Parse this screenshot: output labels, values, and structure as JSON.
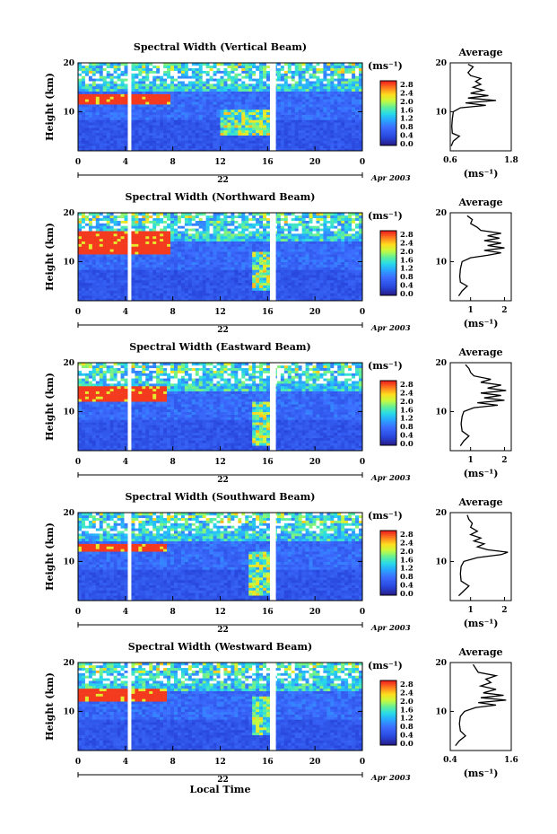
{
  "chart_data": [
    {
      "type": "heatmap",
      "title": "Spectral Width (Vertical Beam)",
      "ylabel": "Height (km)",
      "y_ticks": [
        "20",
        "10"
      ],
      "x_ticks": [
        "0",
        "4",
        "8",
        "12",
        "16",
        "20",
        "0"
      ],
      "date_label": "22",
      "month_label": "Apr 2003",
      "xlim": [
        0,
        24
      ],
      "ylim": [
        2,
        20
      ],
      "unit_label": "(ms⁻¹)",
      "colorbar_ticks": [
        "2.8",
        "2.4",
        "2.0",
        "1.6",
        "1.2",
        "0.8",
        "0.4",
        "0.0"
      ],
      "data_gaps": [
        [
          4.2,
          4.5
        ],
        [
          16.2,
          16.7
        ]
      ],
      "features": [
        {
          "kind": "high",
          "t": [
            0,
            7.7
          ],
          "h": [
            11.5,
            13.5
          ]
        },
        {
          "kind": "patch",
          "t": [
            12.0,
            16.0
          ],
          "h": [
            5,
            10
          ]
        }
      ],
      "profile": {
        "title": "Average",
        "xlabel": "(ms⁻¹)",
        "x_ticks": [
          "0.6",
          "1.8"
        ],
        "xlim": [
          0.6,
          1.8
        ],
        "y_ticks": [
          "20",
          "10"
        ],
        "points": [
          [
            0.62,
            3
          ],
          [
            0.66,
            4
          ],
          [
            0.78,
            5
          ],
          [
            0.64,
            5.6
          ],
          [
            0.63,
            7
          ],
          [
            0.64,
            8.5
          ],
          [
            0.66,
            10
          ],
          [
            0.8,
            10.8
          ],
          [
            1.3,
            11.3
          ],
          [
            0.9,
            11.8
          ],
          [
            1.5,
            12.3
          ],
          [
            0.95,
            12.8
          ],
          [
            1.35,
            13.3
          ],
          [
            1.0,
            13.8
          ],
          [
            1.25,
            14.4
          ],
          [
            1.05,
            15.0
          ],
          [
            1.2,
            15.6
          ],
          [
            1.1,
            16.2
          ],
          [
            1.2,
            16.8
          ],
          [
            1.0,
            17.4
          ],
          [
            0.95,
            18.0
          ],
          [
            1.0,
            18.6
          ],
          [
            1.05,
            19.2
          ],
          [
            0.95,
            19.7
          ]
        ]
      }
    },
    {
      "type": "heatmap",
      "title": "Spectral Width (Northward Beam)",
      "ylabel": "Height (km)",
      "y_ticks": [
        "20",
        "10"
      ],
      "x_ticks": [
        "0",
        "4",
        "8",
        "12",
        "16",
        "20",
        "0"
      ],
      "date_label": "22",
      "month_label": "Apr 2003",
      "xlim": [
        0,
        24
      ],
      "ylim": [
        2,
        20
      ],
      "unit_label": "(ms⁻¹)",
      "colorbar_ticks": [
        "2.8",
        "2.4",
        "2.0",
        "1.6",
        "1.2",
        "0.8",
        "0.4",
        "0.0"
      ],
      "data_gaps": [
        [
          4.2,
          4.5
        ],
        [
          16.2,
          16.7
        ]
      ],
      "features": [
        {
          "kind": "high",
          "t": [
            0,
            7.7
          ],
          "h": [
            11.5,
            16.0
          ]
        },
        {
          "kind": "patch",
          "t": [
            14.5,
            16.0
          ],
          "h": [
            4,
            12
          ]
        }
      ],
      "profile": {
        "title": "Average",
        "xlabel": "(ms⁻¹)",
        "x_ticks": [
          "1",
          "2"
        ],
        "xlim": [
          0.4,
          2.2
        ],
        "y_ticks": [
          "20",
          "10"
        ],
        "points": [
          [
            0.65,
            3
          ],
          [
            0.75,
            4
          ],
          [
            0.9,
            5
          ],
          [
            0.7,
            5.8
          ],
          [
            0.68,
            7
          ],
          [
            0.7,
            8.5
          ],
          [
            0.75,
            10
          ],
          [
            1.0,
            10.8
          ],
          [
            1.5,
            11.3
          ],
          [
            1.9,
            11.8
          ],
          [
            1.4,
            12.3
          ],
          [
            2.0,
            12.8
          ],
          [
            1.5,
            13.3
          ],
          [
            1.9,
            13.8
          ],
          [
            1.4,
            14.3
          ],
          [
            1.85,
            14.8
          ],
          [
            1.5,
            15.3
          ],
          [
            1.9,
            15.8
          ],
          [
            1.3,
            16.4
          ],
          [
            1.2,
            17.0
          ],
          [
            1.0,
            17.8
          ],
          [
            1.05,
            18.6
          ],
          [
            0.9,
            19.4
          ]
        ]
      }
    },
    {
      "type": "heatmap",
      "title": "Spectral Width (Eastward Beam)",
      "ylabel": "Height (km)",
      "y_ticks": [
        "20",
        "10"
      ],
      "x_ticks": [
        "0",
        "4",
        "8",
        "12",
        "16",
        "20",
        "0"
      ],
      "date_label": "22",
      "month_label": "Apr 2003",
      "xlim": [
        0,
        24
      ],
      "ylim": [
        2,
        20
      ],
      "unit_label": "(ms⁻¹)",
      "colorbar_ticks": [
        "2.8",
        "2.4",
        "2.0",
        "1.6",
        "1.2",
        "0.8",
        "0.4",
        "0.0"
      ],
      "data_gaps": [
        [
          4.2,
          4.5
        ],
        [
          16.2,
          16.7
        ]
      ],
      "features": [
        {
          "kind": "high",
          "t": [
            0,
            7.5
          ],
          "h": [
            12.0,
            15.0
          ]
        },
        {
          "kind": "patch",
          "t": [
            14.5,
            16.0
          ],
          "h": [
            3,
            12
          ]
        }
      ],
      "profile": {
        "title": "Average",
        "xlabel": "(ms⁻¹)",
        "x_ticks": [
          "1",
          "2"
        ],
        "xlim": [
          0.4,
          2.2
        ],
        "y_ticks": [
          "20",
          "10"
        ],
        "points": [
          [
            0.7,
            3
          ],
          [
            0.8,
            4
          ],
          [
            0.95,
            5
          ],
          [
            0.75,
            6
          ],
          [
            0.72,
            7.5
          ],
          [
            0.75,
            9
          ],
          [
            0.8,
            10
          ],
          [
            1.1,
            10.8
          ],
          [
            1.8,
            11.3
          ],
          [
            1.2,
            11.8
          ],
          [
            2.0,
            12.3
          ],
          [
            1.4,
            12.8
          ],
          [
            1.9,
            13.3
          ],
          [
            1.3,
            13.8
          ],
          [
            2.05,
            14.3
          ],
          [
            1.5,
            14.8
          ],
          [
            1.9,
            15.4
          ],
          [
            1.3,
            16.0
          ],
          [
            1.6,
            16.6
          ],
          [
            1.1,
            17.3
          ],
          [
            1.0,
            18.0
          ],
          [
            0.95,
            18.8
          ],
          [
            0.85,
            19.6
          ]
        ]
      }
    },
    {
      "type": "heatmap",
      "title": "Spectral Width (Southward Beam)",
      "ylabel": "Height (km)",
      "y_ticks": [
        "20",
        "10"
      ],
      "x_ticks": [
        "0",
        "4",
        "8",
        "12",
        "16",
        "20",
        "0"
      ],
      "date_label": "22",
      "month_label": "Apr 2003",
      "xlim": [
        0,
        24
      ],
      "ylim": [
        2,
        20
      ],
      "unit_label": "(ms⁻¹)",
      "colorbar_ticks": [
        "2.8",
        "2.4",
        "2.0",
        "1.6",
        "1.2",
        "0.8",
        "0.4",
        "0.0"
      ],
      "data_gaps": [
        [
          4.2,
          4.5
        ],
        [
          16.2,
          16.7
        ]
      ],
      "features": [
        {
          "kind": "high",
          "t": [
            0,
            7.3
          ],
          "h": [
            11.7,
            13.3
          ]
        },
        {
          "kind": "patch",
          "t": [
            14.2,
            16.0
          ],
          "h": [
            3,
            12
          ]
        }
      ],
      "profile": {
        "title": "Average",
        "xlabel": "(ms⁻¹)",
        "x_ticks": [
          "1",
          "2"
        ],
        "xlim": [
          0.4,
          2.2
        ],
        "y_ticks": [
          "20",
          "10"
        ],
        "points": [
          [
            0.65,
            3
          ],
          [
            0.8,
            4
          ],
          [
            0.95,
            5
          ],
          [
            0.72,
            6
          ],
          [
            0.7,
            7.5
          ],
          [
            0.72,
            9
          ],
          [
            0.8,
            10
          ],
          [
            1.2,
            10.8
          ],
          [
            1.9,
            11.4
          ],
          [
            2.1,
            11.9
          ],
          [
            1.5,
            12.4
          ],
          [
            1.2,
            13.0
          ],
          [
            1.4,
            13.6
          ],
          [
            1.1,
            14.2
          ],
          [
            1.3,
            14.8
          ],
          [
            1.0,
            15.5
          ],
          [
            1.2,
            16.2
          ],
          [
            1.0,
            17.0
          ],
          [
            1.05,
            17.8
          ],
          [
            0.95,
            18.6
          ],
          [
            0.9,
            19.5
          ]
        ]
      }
    },
    {
      "type": "heatmap",
      "title": "Spectral Width (Westward Beam)",
      "ylabel": "Height (km)",
      "y_ticks": [
        "20",
        "10"
      ],
      "x_ticks": [
        "0",
        "4",
        "8",
        "12",
        "16",
        "20",
        "0"
      ],
      "date_label": "22",
      "month_label": "Apr 2003",
      "xlabel": "Local Time",
      "xlim": [
        0,
        24
      ],
      "ylim": [
        2,
        20
      ],
      "unit_label": "(ms⁻¹)",
      "colorbar_ticks": [
        "2.8",
        "2.4",
        "2.0",
        "1.6",
        "1.2",
        "0.8",
        "0.4",
        "0.0"
      ],
      "data_gaps": [
        [
          4.2,
          4.5
        ],
        [
          16.2,
          16.7
        ]
      ],
      "features": [
        {
          "kind": "high",
          "t": [
            0,
            7.5
          ],
          "h": [
            11.8,
            14.3
          ]
        },
        {
          "kind": "patch",
          "t": [
            14.5,
            16.0
          ],
          "h": [
            5,
            13
          ]
        }
      ],
      "profile": {
        "title": "Average",
        "xlabel": "(ms⁻¹)",
        "x_ticks": [
          "0.4",
          "1.6"
        ],
        "xlim": [
          0.4,
          1.6
        ],
        "y_ticks": [
          "20",
          "10"
        ],
        "points": [
          [
            0.5,
            3
          ],
          [
            0.58,
            4
          ],
          [
            0.7,
            5
          ],
          [
            0.6,
            6
          ],
          [
            0.58,
            7.5
          ],
          [
            0.6,
            9
          ],
          [
            0.68,
            10
          ],
          [
            0.9,
            10.8
          ],
          [
            1.3,
            11.3
          ],
          [
            0.95,
            11.8
          ],
          [
            1.5,
            12.3
          ],
          [
            1.0,
            12.8
          ],
          [
            1.45,
            13.3
          ],
          [
            1.05,
            13.8
          ],
          [
            1.3,
            14.5
          ],
          [
            1.0,
            15.2
          ],
          [
            1.2,
            15.9
          ],
          [
            1.1,
            16.6
          ],
          [
            1.3,
            17.3
          ],
          [
            0.95,
            18.0
          ],
          [
            0.9,
            18.8
          ],
          [
            0.85,
            19.6
          ]
        ]
      }
    }
  ]
}
